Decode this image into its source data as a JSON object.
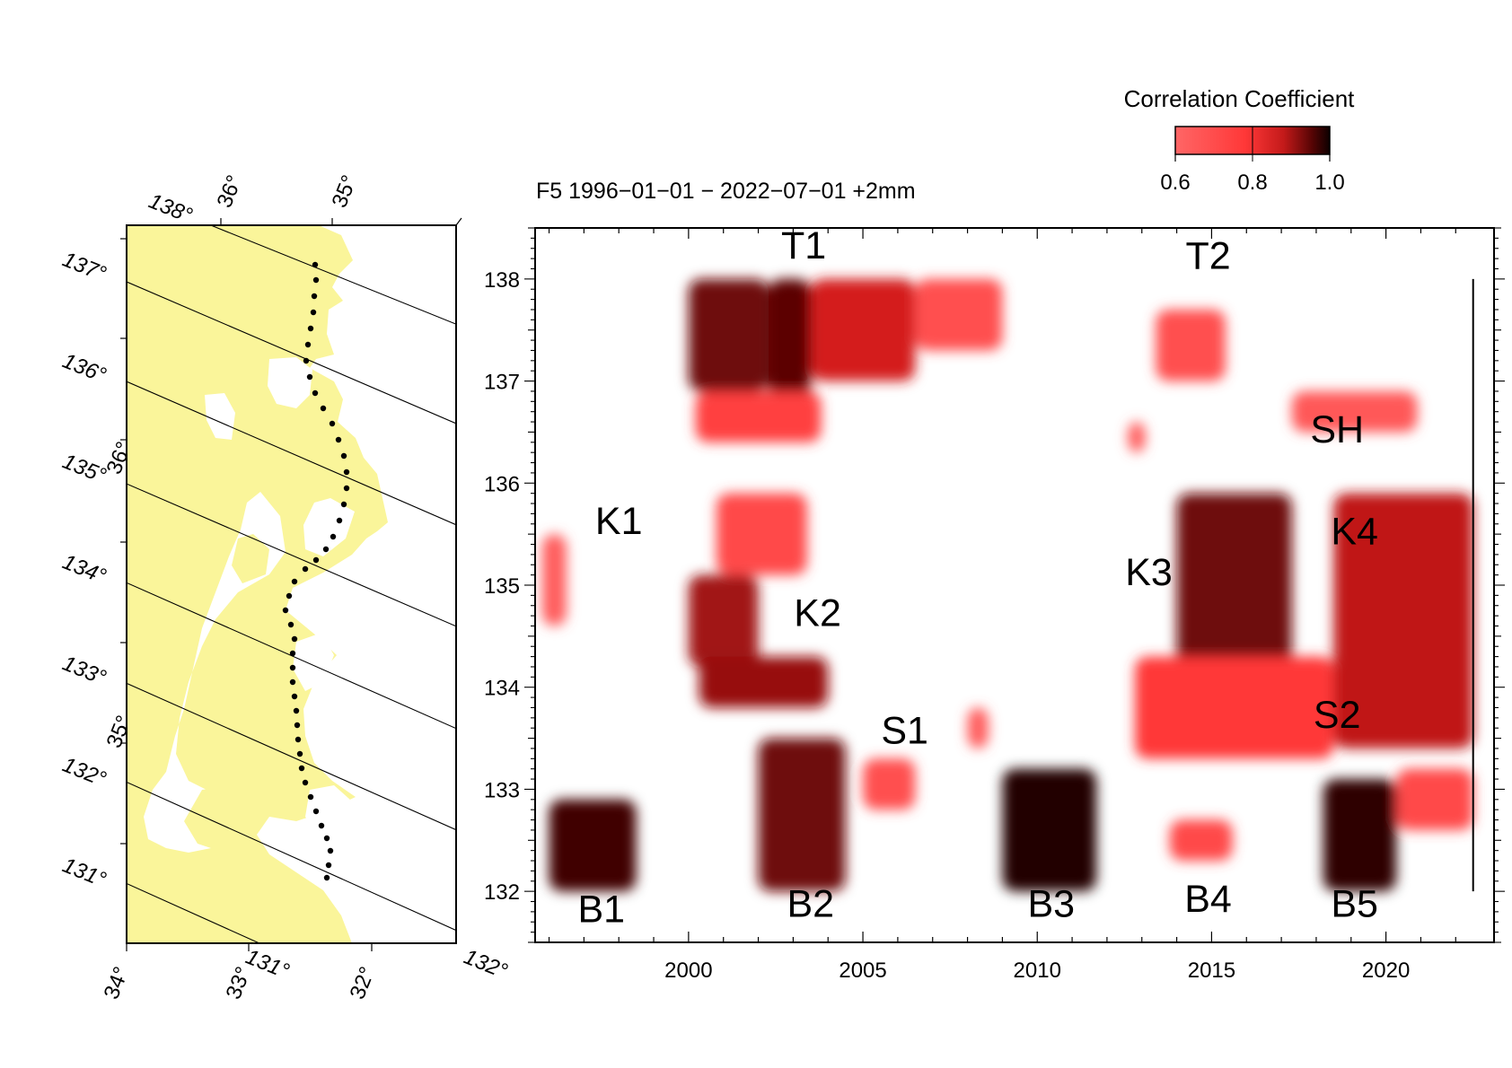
{
  "title": "F5 1996−01−01 − 2022−07−01  +2mm",
  "colorbar": {
    "label": "Correlation Coefficient",
    "ticks": [
      "0.6",
      "0.8",
      "1.0"
    ],
    "range": [
      0.6,
      1.0
    ],
    "colors": [
      "#ff6666",
      "#ff3838",
      "#d41c1c",
      "#6e0808",
      "#120000"
    ]
  },
  "map": {
    "top_lat_labels": [
      "36°",
      "35°"
    ],
    "top_lon_label": "138°",
    "left_lon_labels": [
      "137°",
      "136°",
      "135°",
      "134°",
      "133°",
      "132°",
      "131°"
    ],
    "left_lat_labels": [
      "36°",
      "35°"
    ],
    "bottom_lat_labels": [
      "34°",
      "33°",
      "32°"
    ],
    "bottom_lon_labels": [
      "131°",
      "132°"
    ],
    "land_color": "#faf59a"
  },
  "chart_data": {
    "type": "heatmap",
    "title": "F5 1996−01−01 − 2022−07−01  +2mm",
    "xlabel": "",
    "ylabel": "",
    "xlim": [
      1995.6,
      2023.1
    ],
    "ylim": [
      131.5,
      138.5
    ],
    "x_ticks": [
      2000,
      2005,
      2010,
      2015,
      2020
    ],
    "y_ticks": [
      132,
      133,
      134,
      135,
      136,
      137,
      138
    ],
    "x_tick_labels": [
      "2000",
      "2005",
      "2010",
      "2015",
      "2020"
    ],
    "y_tick_labels": [
      "132",
      "133",
      "134",
      "135",
      "136",
      "137",
      "138"
    ],
    "colorbar_label": "Correlation Coefficient",
    "value_range": [
      0.6,
      1.0
    ],
    "vertical_marker": {
      "x": 2022.5,
      "y_range": [
        132.0,
        138.0
      ]
    },
    "annotations": [
      {
        "text": "T1",
        "x": 2003.3,
        "y": 138.2
      },
      {
        "text": "T2",
        "x": 2014.9,
        "y": 138.1
      },
      {
        "text": "SH",
        "x": 2018.6,
        "y": 136.4
      },
      {
        "text": "K1",
        "x": 1998.0,
        "y": 135.5
      },
      {
        "text": "K2",
        "x": 2003.7,
        "y": 134.6
      },
      {
        "text": "K3",
        "x": 2013.2,
        "y": 135.0
      },
      {
        "text": "K4",
        "x": 2019.1,
        "y": 135.4
      },
      {
        "text": "S1",
        "x": 2006.2,
        "y": 133.45
      },
      {
        "text": "S2",
        "x": 2018.6,
        "y": 133.6
      },
      {
        "text": "B1",
        "x": 1997.5,
        "y": 131.7
      },
      {
        "text": "B2",
        "x": 2003.5,
        "y": 131.75
      },
      {
        "text": "B3",
        "x": 2010.4,
        "y": 131.75
      },
      {
        "text": "B4",
        "x": 2014.9,
        "y": 131.8
      },
      {
        "text": "B5",
        "x": 2019.1,
        "y": 131.75
      }
    ],
    "regions": [
      {
        "x": [
          2000.0,
          2002.3
        ],
        "y": [
          136.9,
          138.0
        ],
        "value": 0.9
      },
      {
        "x": [
          2002.3,
          2003.5
        ],
        "y": [
          136.5,
          138.0
        ],
        "value": 0.92
      },
      {
        "x": [
          2003.5,
          2006.5
        ],
        "y": [
          137.0,
          138.0
        ],
        "value": 0.8
      },
      {
        "x": [
          2006.5,
          2009.0
        ],
        "y": [
          137.3,
          138.0
        ],
        "value": 0.65
      },
      {
        "x": [
          2000.2,
          2003.8
        ],
        "y": [
          136.4,
          136.9
        ],
        "value": 0.68
      },
      {
        "x": [
          2013.4,
          2015.4
        ],
        "y": [
          137.0,
          137.7
        ],
        "value": 0.65
      },
      {
        "x": [
          2017.3,
          2020.9
        ],
        "y": [
          136.5,
          136.9
        ],
        "value": 0.63
      },
      {
        "x": [
          1995.8,
          1996.5
        ],
        "y": [
          134.6,
          135.5
        ],
        "value": 0.62
      },
      {
        "x": [
          2000.0,
          2002.0
        ],
        "y": [
          134.2,
          135.1
        ],
        "value": 0.85
      },
      {
        "x": [
          2000.8,
          2003.4
        ],
        "y": [
          135.1,
          135.9
        ],
        "value": 0.66
      },
      {
        "x": [
          2000.3,
          2004.0
        ],
        "y": [
          133.8,
          134.3
        ],
        "value": 0.86
      },
      {
        "x": [
          2014.0,
          2017.3
        ],
        "y": [
          134.0,
          135.9
        ],
        "value": 0.9
      },
      {
        "x": [
          2012.8,
          2018.5
        ],
        "y": [
          133.3,
          134.3
        ],
        "value": 0.7
      },
      {
        "x": [
          2018.5,
          2022.5
        ],
        "y": [
          133.4,
          135.9
        ],
        "value": 0.82
      },
      {
        "x": [
          2005.0,
          2006.5
        ],
        "y": [
          132.8,
          133.3
        ],
        "value": 0.65
      },
      {
        "x": [
          2008.0,
          2008.6
        ],
        "y": [
          133.4,
          133.8
        ],
        "value": 0.62
      },
      {
        "x": [
          2012.6,
          2013.1
        ],
        "y": [
          136.3,
          136.6
        ],
        "value": 0.62
      },
      {
        "x": [
          1996.0,
          1998.5
        ],
        "y": [
          132.0,
          132.9
        ],
        "value": 0.95
      },
      {
        "x": [
          2002.0,
          2004.5
        ],
        "y": [
          132.0,
          133.5
        ],
        "value": 0.9
      },
      {
        "x": [
          2009.0,
          2011.7
        ],
        "y": [
          132.0,
          133.2
        ],
        "value": 0.98
      },
      {
        "x": [
          2013.8,
          2015.6
        ],
        "y": [
          132.3,
          132.7
        ],
        "value": 0.66
      },
      {
        "x": [
          2018.2,
          2020.3
        ],
        "y": [
          132.0,
          133.1
        ],
        "value": 0.97
      },
      {
        "x": [
          2020.3,
          2022.5
        ],
        "y": [
          132.6,
          133.2
        ],
        "value": 0.66
      }
    ]
  }
}
